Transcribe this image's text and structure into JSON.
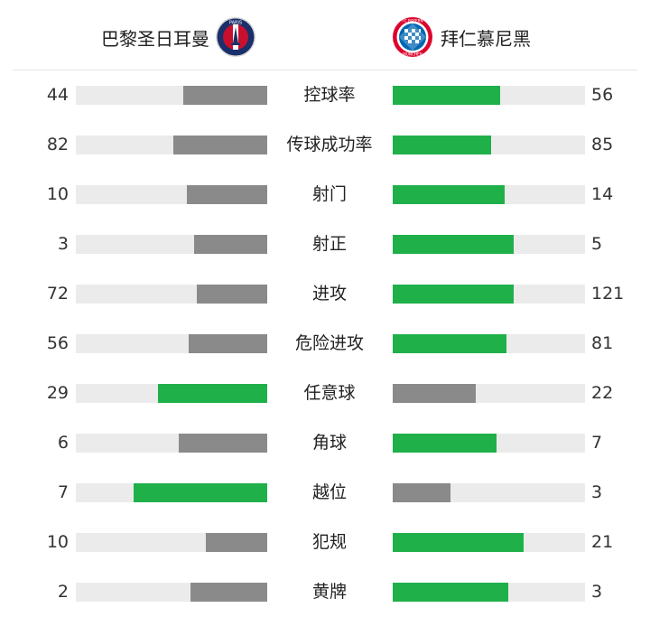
{
  "teams": {
    "home": {
      "name": "巴黎圣日耳曼",
      "logo_icon": "psg-crest-icon",
      "logo_text": "PARIS"
    },
    "away": {
      "name": "拜仁慕尼黑",
      "logo_icon": "bayern-crest-icon",
      "logo_text_top": "FC BAYERN",
      "logo_text_bottom": "MÜNCHEN"
    }
  },
  "colors": {
    "win": "#1fb04a",
    "lose": "#8a8a8a",
    "track": "#ebebeb"
  },
  "stats": [
    {
      "label": "控球率",
      "home": "44",
      "away": "56",
      "home_fill": 0.44,
      "away_fill": 0.56,
      "leader": "away"
    },
    {
      "label": "传球成功率",
      "home": "82",
      "away": "85",
      "home_fill": 0.49,
      "away_fill": 0.51,
      "leader": "away"
    },
    {
      "label": "射门",
      "home": "10",
      "away": "14",
      "home_fill": 0.42,
      "away_fill": 0.58,
      "leader": "away"
    },
    {
      "label": "射正",
      "home": "3",
      "away": "5",
      "home_fill": 0.38,
      "away_fill": 0.63,
      "leader": "away"
    },
    {
      "label": "进攻",
      "home": "72",
      "away": "121",
      "home_fill": 0.37,
      "away_fill": 0.63,
      "leader": "away"
    },
    {
      "label": "危险进攻",
      "home": "56",
      "away": "81",
      "home_fill": 0.41,
      "away_fill": 0.59,
      "leader": "away"
    },
    {
      "label": "任意球",
      "home": "29",
      "away": "22",
      "home_fill": 0.57,
      "away_fill": 0.43,
      "leader": "home"
    },
    {
      "label": "角球",
      "home": "6",
      "away": "7",
      "home_fill": 0.46,
      "away_fill": 0.54,
      "leader": "away"
    },
    {
      "label": "越位",
      "home": "7",
      "away": "3",
      "home_fill": 0.7,
      "away_fill": 0.3,
      "leader": "home"
    },
    {
      "label": "犯规",
      "home": "10",
      "away": "21",
      "home_fill": 0.32,
      "away_fill": 0.68,
      "leader": "away"
    },
    {
      "label": "黄牌",
      "home": "2",
      "away": "3",
      "home_fill": 0.4,
      "away_fill": 0.6,
      "leader": "away"
    }
  ]
}
